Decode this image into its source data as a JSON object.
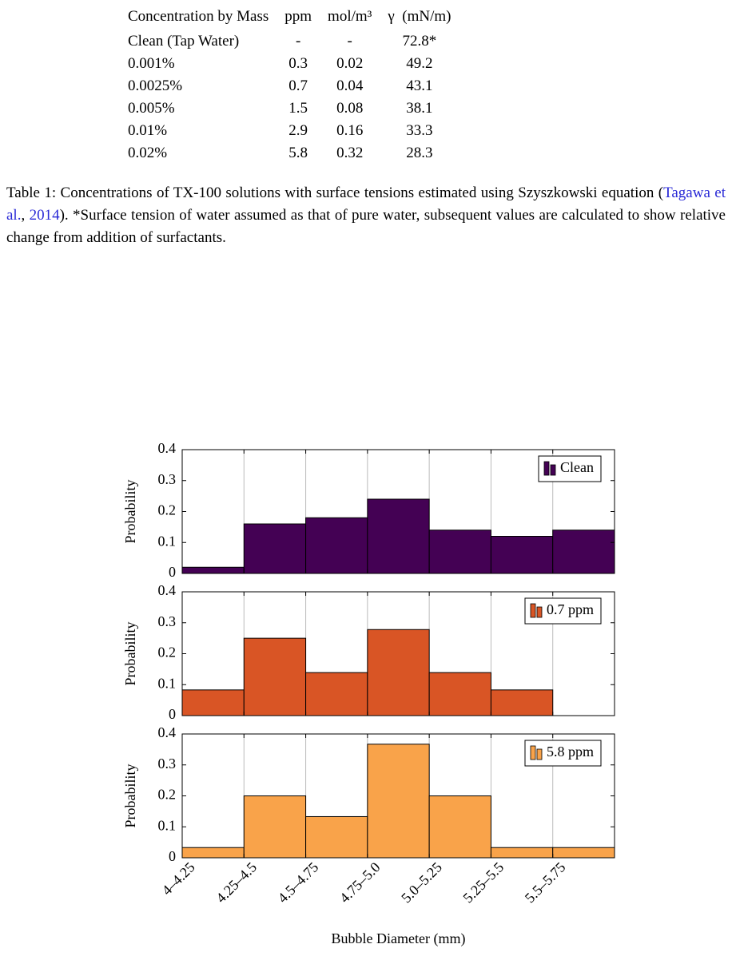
{
  "table": {
    "header": [
      "Concentration by Mass",
      "ppm",
      "mol/m³",
      "γ  (mN/m)"
    ],
    "rows": [
      [
        "Clean (Tap Water)",
        "-",
        "-",
        "72.8*"
      ],
      [
        "0.001%",
        "0.3",
        "0.02",
        "49.2"
      ],
      [
        "0.0025%",
        "0.7",
        "0.04",
        "43.1"
      ],
      [
        "0.005%",
        "1.5",
        "0.08",
        "38.1"
      ],
      [
        "0.01%",
        "2.9",
        "0.16",
        "33.3"
      ],
      [
        "0.02%",
        "5.8",
        "0.32",
        "28.3"
      ]
    ]
  },
  "caption": {
    "label": "Table 1:",
    "before": "Concentrations of TX-100 solutions with surface tensions estimated using Szyszkowski equation (",
    "cite_author": "Tagawa et al.",
    "cite_sep": ", ",
    "cite_year": "2014",
    "after": "). *Surface tension of water assumed as that of pure water, subsequent values are calculated to show relative change from addition of surfactants."
  },
  "chart_data": [
    {
      "type": "bar",
      "ylabel": "Probability",
      "ylim": [
        0,
        0.4
      ],
      "yticks": [
        0,
        0.1,
        0.2,
        0.3,
        0.4
      ],
      "grid": true,
      "legend": "top-right",
      "series": [
        {
          "name": "Clean",
          "color": "#440154",
          "values": [
            0.02,
            0.16,
            0.18,
            0.24,
            0.14,
            0.12,
            0.14
          ]
        }
      ]
    },
    {
      "type": "bar",
      "ylabel": "Probability",
      "ylim": [
        0,
        0.4
      ],
      "yticks": [
        0,
        0.1,
        0.2,
        0.3,
        0.4
      ],
      "grid": true,
      "legend": "top-right",
      "series": [
        {
          "name": "0.7 ppm",
          "color": "#d95525",
          "values": [
            0.083,
            0.25,
            0.139,
            0.278,
            0.139,
            0.083,
            0
          ]
        }
      ]
    },
    {
      "type": "bar",
      "ylabel": "Probability",
      "xlabel": "Bubble Diameter (mm)",
      "ylim": [
        0,
        0.4
      ],
      "yticks": [
        0,
        0.1,
        0.2,
        0.3,
        0.4
      ],
      "grid": true,
      "legend": "top-right",
      "categories": [
        "4–4.25",
        "4.25–4.5",
        "4.5–4.75",
        "4.75–5.0",
        "5.0–5.25",
        "5.25–5.5",
        "5.5–5.75"
      ],
      "series": [
        {
          "name": "5.8 ppm",
          "color": "#f9a34a",
          "values": [
            0.033,
            0.2,
            0.133,
            0.367,
            0.2,
            0.033,
            0.033
          ]
        }
      ]
    }
  ]
}
